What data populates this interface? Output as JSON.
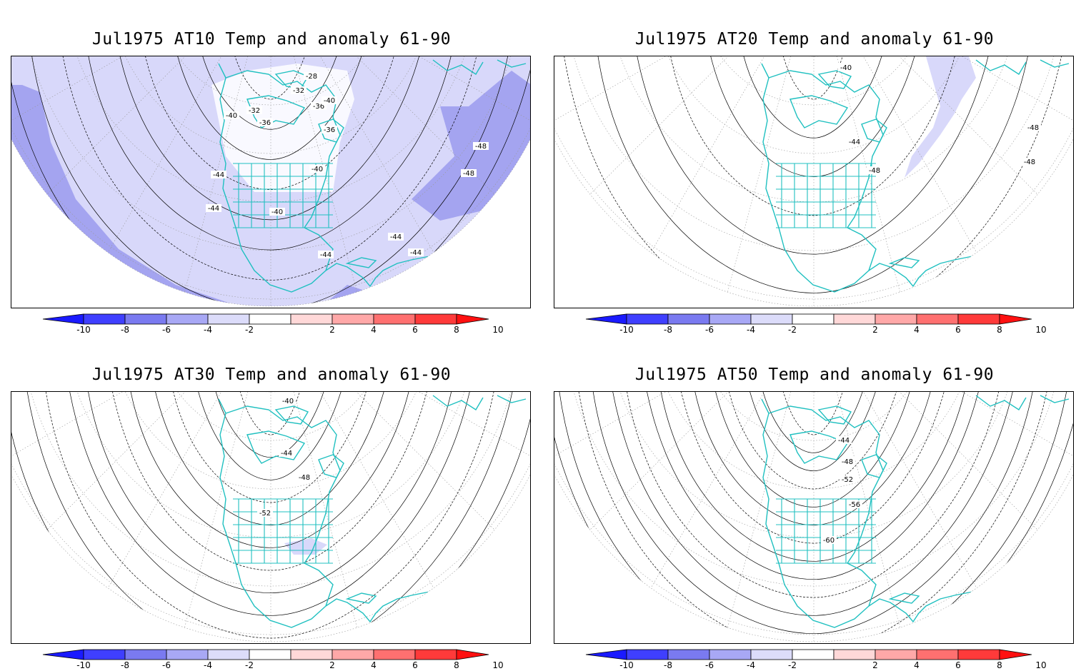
{
  "panels": [
    {
      "title": "Jul1975 AT10 Temp and anomaly 61-90",
      "contour_labels": [
        "-28",
        "-32",
        "-32",
        "-36",
        "-36",
        "-36",
        "-40",
        "-40",
        "-40",
        "-40",
        "-44",
        "-44",
        "-44",
        "-44",
        "-44",
        "-48",
        "-48"
      ],
      "shading": "widespread negative anomaly (-2 to -6), stronger bands along edges"
    },
    {
      "title": "Jul1975 AT20 Temp and anomaly 61-90",
      "contour_labels": [
        "-40",
        "-44",
        "-48",
        "-48",
        "-48"
      ],
      "shading": "small negative anomaly patch over North Atlantic"
    },
    {
      "title": "Jul1975 AT30 Temp and anomaly 61-90",
      "contour_labels": [
        "-40",
        "-44",
        "-48",
        "-52"
      ],
      "shading": "small negative anomaly patch in Gulf of Mexico"
    },
    {
      "title": "Jul1975 AT50 Temp and anomaly 61-90",
      "contour_labels": [
        "-44",
        "-48",
        "-52",
        "-56",
        "-60"
      ],
      "shading": "none"
    }
  ],
  "colorbar": {
    "tick_labels": [
      "-10",
      "-8",
      "-6",
      "-4",
      "-2",
      "2",
      "4",
      "6",
      "8",
      "10"
    ],
    "colors": [
      "#1a1aff",
      "#3f3fff",
      "#7a7af0",
      "#a8a8f5",
      "#dcdcfa",
      "#ffffff",
      "#ffd8d8",
      "#ffa8a8",
      "#ff7070",
      "#ff3a3a",
      "#ff1010"
    ]
  },
  "colors": {
    "coast": "#20c0c0",
    "contour": "#000000",
    "grid": "#999999",
    "neg_light": "#d8d8fa",
    "neg_mid": "#a4a4f0"
  }
}
